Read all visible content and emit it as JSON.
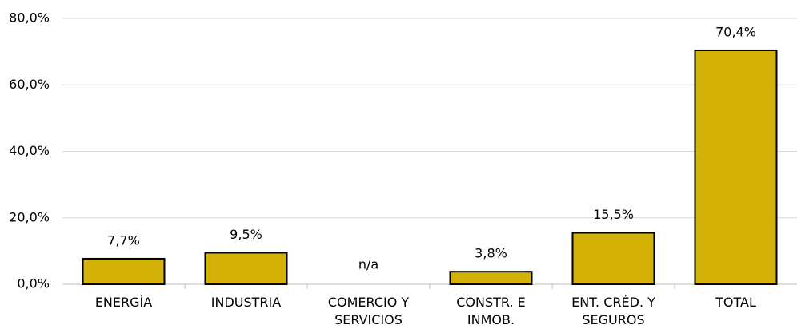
{
  "chart_data": {
    "type": "bar",
    "categories": [
      "ENERGÍA",
      "INDUSTRIA",
      "COMERCIO Y SERVICIOS",
      "CONSTR. E INMOB.",
      "ENT. CRÉD. Y SEGUROS",
      "TOTAL"
    ],
    "values": [
      7.7,
      9.5,
      null,
      3.8,
      15.5,
      70.4
    ],
    "value_labels": [
      "7,7%",
      "9,5%",
      "n/a",
      "3,8%",
      "15,5%",
      "70,4%"
    ],
    "color": "#d4b106",
    "ylim": [
      0,
      80
    ],
    "yticks": [
      {
        "value": 0,
        "label": "0,0%"
      },
      {
        "value": 20,
        "label": "20,0%"
      },
      {
        "value": 40,
        "label": "40,0%"
      },
      {
        "value": 60,
        "label": "60,0%"
      },
      {
        "value": 80,
        "label": "80,0%"
      }
    ],
    "grid": true
  }
}
